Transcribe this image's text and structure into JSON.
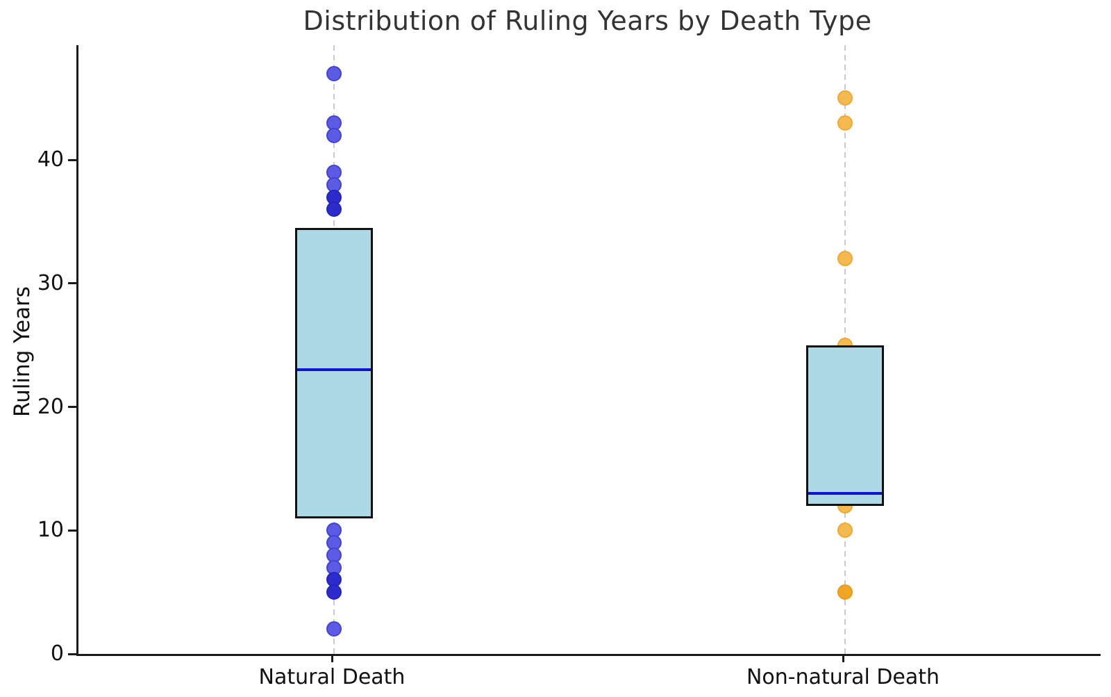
{
  "chart_data": {
    "type": "boxplot_with_points",
    "title": "Distribution of Ruling Years by Death Type",
    "ylabel": "Ruling Years",
    "xlabel": "",
    "categories": [
      "Natural Death",
      "Non-natural Death"
    ],
    "ylim": [
      0,
      49.3
    ],
    "yticks": [
      0,
      10,
      20,
      30,
      40
    ],
    "grid": "vertical dashed line at each category center",
    "legend": "none",
    "box_fill": "#add8e6",
    "box_edge": "#111111",
    "median_color": "#1212cf",
    "grid_color": "#c9c9c9",
    "axis_color": "#1a1a1a",
    "title_color": "#333333",
    "series": [
      {
        "name": "Natural Death",
        "box": {
          "q1": 11,
          "median": 23,
          "q3": 34.5
        },
        "point_colors": {
          "light_fill": "#5b5be3",
          "light_edge": "#4242d5",
          "dark_fill": "#2c2ccd",
          "dark_edge": "#2424bf"
        },
        "points": [
          {
            "value": 47,
            "overlap": false
          },
          {
            "value": 43,
            "overlap": false
          },
          {
            "value": 42,
            "overlap": false
          },
          {
            "value": 39,
            "overlap": false
          },
          {
            "value": 38,
            "overlap": false
          },
          {
            "value": 37,
            "overlap": true
          },
          {
            "value": 36,
            "overlap": true
          },
          {
            "value": 10,
            "overlap": false
          },
          {
            "value": 9,
            "overlap": false
          },
          {
            "value": 8,
            "overlap": false
          },
          {
            "value": 7,
            "overlap": false
          },
          {
            "value": 6,
            "overlap": true
          },
          {
            "value": 5,
            "overlap": true
          },
          {
            "value": 2,
            "overlap": false
          }
        ]
      },
      {
        "name": "Non-natural Death",
        "box": {
          "q1": 12,
          "median": 13,
          "q3": 25
        },
        "point_colors": {
          "light_fill": "#f5ba4f",
          "light_edge": "#efa831",
          "dark_fill": "#f1a524",
          "dark_edge": "#e69c1c"
        },
        "points": [
          {
            "value": 45,
            "overlap": false
          },
          {
            "value": 43,
            "overlap": false
          },
          {
            "value": 32,
            "overlap": false
          },
          {
            "value": 25,
            "overlap": false
          },
          {
            "value": 12,
            "overlap": false
          },
          {
            "value": 10,
            "overlap": false
          },
          {
            "value": 5,
            "overlap": true
          }
        ]
      }
    ]
  }
}
